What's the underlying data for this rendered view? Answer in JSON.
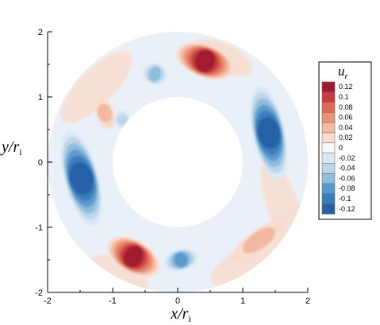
{
  "chart_data": {
    "type": "heatmap",
    "title": "",
    "xlabel_main": "x",
    "xlabel_sep": "/",
    "xlabel_sym": "r",
    "xlabel_sub": "i",
    "ylabel_main": "y",
    "ylabel_sep": "/",
    "ylabel_sym": "r",
    "ylabel_sub": "i",
    "xlim": [
      -2,
      2
    ],
    "ylim": [
      -2,
      2
    ],
    "x_ticks": [
      "-2",
      "-1",
      "0",
      "1",
      "2"
    ],
    "y_ticks": [
      "-2",
      "-1",
      "0",
      "1",
      "2"
    ],
    "annulus": {
      "inner_radius": 1.0,
      "outer_radius": 2.0
    },
    "colorbar": {
      "title_sym": "u",
      "title_sub": "r",
      "levels": [
        "0.12",
        "0.1",
        "0.08",
        "0.06",
        "0.04",
        "0.02",
        "0",
        "-0.02",
        "-0.04",
        "-0.06",
        "-0.08",
        "-0.1",
        "-0.12"
      ],
      "colors": [
        "#a11a2e",
        "#c93a3f",
        "#de6a57",
        "#ea9176",
        "#f3b9a1",
        "#f9dccd",
        "#f5f7f8",
        "#dbe8f3",
        "#bcd6ea",
        "#8fbede",
        "#5a9bcc",
        "#3a7dbd",
        "#2661a6"
      ],
      "legend_placement": "right"
    },
    "extrema": [
      {
        "x": 0.42,
        "y": 1.55,
        "value": 0.12
      },
      {
        "x": -0.68,
        "y": -1.45,
        "value": 0.12
      },
      {
        "x": 1.4,
        "y": 0.45,
        "value": -0.12
      },
      {
        "x": -1.48,
        "y": -0.25,
        "value": -0.12
      },
      {
        "x": -0.35,
        "y": 1.35,
        "value": -0.06
      },
      {
        "x": 0.05,
        "y": -1.5,
        "value": -0.08
      },
      {
        "x": -1.12,
        "y": 0.75,
        "value": 0.04
      },
      {
        "x": 1.25,
        "y": -1.2,
        "value": 0.04
      },
      {
        "x": -0.85,
        "y": 0.65,
        "value": -0.04
      }
    ]
  }
}
